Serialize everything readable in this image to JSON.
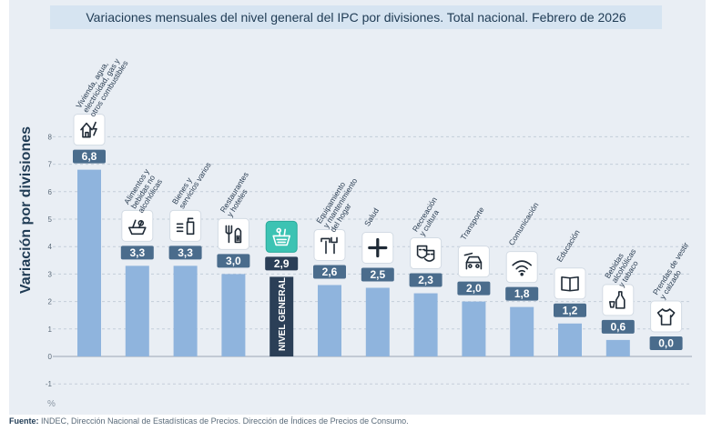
{
  "title": "Variaciones mensuales del nivel general del IPC por divisiones. Total nacional. Febrero de 2026",
  "ylabel": "Variación por divisiones",
  "unit": "%",
  "source_label": "Fuente:",
  "source_text": " INDEC, Dirección Nacional de Estadísticas de Precios. Dirección de Índices de Precios de Consumo.",
  "colors": {
    "bar": "#8fb4dd",
    "highlight": "#2b3f57",
    "label_bg": "#4a6c8c",
    "panel": "#e9eef4"
  },
  "chart_data": {
    "type": "bar",
    "ylim": [
      -1,
      8
    ],
    "yticks": [
      "-1",
      "0",
      "1",
      "2",
      "3",
      "4",
      "5",
      "6",
      "7",
      "8"
    ],
    "grid": true,
    "categories": [
      [
        "Vivienda, agua,",
        "electricidad, gas y",
        "otros combustibles"
      ],
      [
        "Alimentos y",
        "bebidas no",
        "alcohólicas"
      ],
      [
        "Bienes y",
        "servicios varios"
      ],
      [
        "Restaurantes",
        "y hoteles"
      ],
      [
        "NIVEL GENERAL"
      ],
      [
        "Equipamiento",
        "y mantenimiento",
        "del hogar"
      ],
      [
        "Salud"
      ],
      [
        "Recreación",
        "y cultura"
      ],
      [
        "Transporte"
      ],
      [
        "Comunicación"
      ],
      [
        "Educación"
      ],
      [
        "Bebidas",
        "alcohólicas",
        "y tabaco"
      ],
      [
        "Prendas de vestir",
        "y calzado"
      ]
    ],
    "values": [
      6.8,
      3.3,
      3.3,
      3.0,
      2.9,
      2.6,
      2.5,
      2.3,
      2.0,
      1.8,
      1.2,
      0.6,
      0.0
    ],
    "value_labels": [
      "6,8",
      "3,3",
      "3,3",
      "3,0",
      "2,9",
      "2,6",
      "2,5",
      "2,3",
      "2,0",
      "1,8",
      "1,2",
      "0,6",
      "0,0"
    ],
    "icons": [
      "house-utilities-icon",
      "food-basket-icon",
      "personal-care-icon",
      "restaurant-icon",
      "shopping-basket-icon",
      "tools-icon",
      "health-cross-icon",
      "theater-masks-icon",
      "car-icon",
      "wifi-icon",
      "book-icon",
      "bottle-icon",
      "tshirt-icon"
    ],
    "highlight_index": 4
  }
}
